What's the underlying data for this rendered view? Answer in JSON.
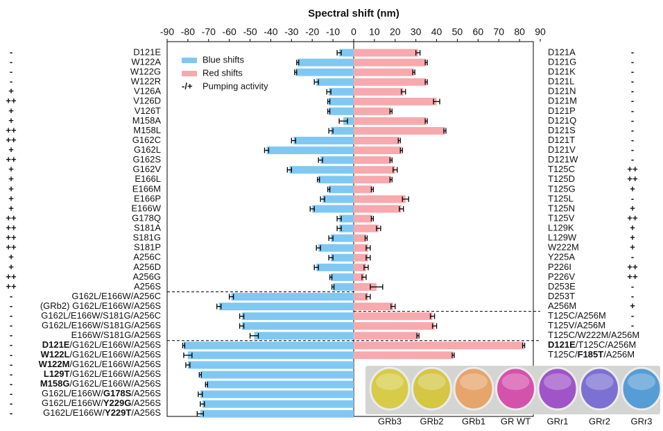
{
  "chart_data": {
    "type": "diverging-bar",
    "title": "Spectral shift (nm)",
    "xlim": [
      -90,
      90
    ],
    "xticks": [
      -90,
      -80,
      -70,
      -60,
      -50,
      -40,
      -30,
      -20,
      -10,
      0,
      10,
      20,
      30,
      40,
      50,
      60,
      70,
      80,
      90
    ],
    "legend_note": {
      "symbol": "-/+",
      "label": "Pumping activity"
    },
    "series": [
      {
        "name": "Blue shifts",
        "color": "#80c8f2",
        "side": "left",
        "categories": [
          "D121E",
          "W122A",
          "W122G",
          "W122R",
          "V126A",
          "V126D",
          "V126T",
          "M158A",
          "M158L",
          "G162C",
          "G162L",
          "G162S",
          "G162V",
          "E166L",
          "E166M",
          "E166P",
          "E166W",
          "G178Q",
          "S181A",
          "S181G",
          "S181P",
          "A256C",
          "A256D",
          "A256G",
          "A256S",
          "G162L/E166W/A256C",
          "(GRb2) G162L/E166W/A256S",
          "G162L/E166W/S181G/A256C",
          "G162L/E166W/S181G/A256S",
          "E166W/S181G/A256S",
          [
            {
              "text": "D121E",
              "bold": true
            },
            {
              "text": "/G162L/E166W/A256S",
              "bold": false
            }
          ],
          [
            {
              "text": "W122L",
              "bold": true
            },
            {
              "text": "/G162L/E166W/A256S",
              "bold": false
            }
          ],
          [
            {
              "text": "W122M",
              "bold": true
            },
            {
              "text": "/G162L/E166W/A256S",
              "bold": false
            }
          ],
          [
            {
              "text": "L129T",
              "bold": true
            },
            {
              "text": "/G162L/E166W/A256S",
              "bold": false
            }
          ],
          [
            {
              "text": "M158G",
              "bold": true
            },
            {
              "text": "/G162L/E166W/A256S",
              "bold": false
            }
          ],
          [
            {
              "text": "G162L/E166W/",
              "bold": false
            },
            {
              "text": "G178S",
              "bold": true
            },
            {
              "text": "/A256S",
              "bold": false
            }
          ],
          [
            {
              "text": "G162L/E166W/",
              "bold": false
            },
            {
              "text": "Y229G",
              "bold": true
            },
            {
              "text": "/A256S",
              "bold": false
            }
          ],
          [
            {
              "text": "G162L/E166W/",
              "bold": false
            },
            {
              "text": "Y229T",
              "bold": true
            },
            {
              "text": "/A256S",
              "bold": false
            }
          ]
        ],
        "values": [
          -7,
          -27,
          -28,
          -18,
          -12,
          -12,
          -12,
          -5,
          -11,
          -29,
          -42,
          -16,
          -31,
          -17,
          -12,
          -15,
          -20,
          -7,
          -7,
          -11,
          -17,
          -11,
          -18,
          -11,
          -10,
          -59,
          -65,
          -54,
          -54,
          -48,
          -82,
          -80,
          -80,
          -74,
          -71,
          -74,
          -73,
          -74
        ],
        "errors": [
          1,
          0.5,
          0.5,
          1,
          1,
          0.5,
          0.5,
          2,
          1,
          1,
          1,
          1,
          1,
          0.5,
          0.5,
          1,
          1,
          1,
          1,
          1,
          1,
          1,
          1,
          0.5,
          0.5,
          1,
          1,
          1,
          1,
          2,
          0.5,
          2,
          1,
          0.5,
          0.5,
          1,
          1,
          1.5
        ],
        "activity": [
          "-",
          "-",
          "-",
          "-",
          "+",
          "++",
          "+",
          "+",
          "++",
          "++",
          "+",
          "++",
          "+",
          "+",
          "+",
          "+",
          "+",
          "++",
          "++",
          "++",
          "++",
          "+",
          "+",
          "++",
          "++",
          "-",
          "-",
          "-",
          "-",
          "-",
          "-",
          "-",
          "-",
          "-",
          "-",
          "-",
          "-",
          "-"
        ]
      },
      {
        "name": "Red shifts",
        "color": "#f7a9ad",
        "side": "right",
        "categories": [
          "D121A",
          "D121G",
          "D121K",
          "D121L",
          "D121N",
          "D121M",
          "D121P",
          "D121Q",
          "D121S",
          "D121T",
          "D121V",
          "D121W",
          "T125C",
          "T125D",
          "T125G",
          "T125L",
          "T125N",
          "T125V",
          "L129K",
          "L129W",
          "W222M",
          "Y225A",
          "P226I",
          "P226V",
          "D253E",
          "D253T",
          "A256M",
          "T125C/A256M",
          "T125V/A256M",
          "T125C/W222M/A256M",
          [
            {
              "text": "D121E",
              "bold": true
            },
            {
              "text": "/T125C/A256M",
              "bold": false
            }
          ],
          [
            {
              "text": "T125C/",
              "bold": false
            },
            {
              "text": "F185T",
              "bold": true
            },
            {
              "text": "/A256M",
              "bold": false
            }
          ]
        ],
        "values": [
          31,
          35,
          29,
          35,
          24,
          40,
          18,
          35,
          44,
          22,
          23,
          18,
          20,
          18,
          9,
          25,
          23,
          9,
          12,
          6,
          7,
          7,
          6,
          5,
          11,
          7,
          19,
          38,
          39,
          31,
          82,
          48
        ],
        "errors": [
          1,
          0.5,
          0.5,
          0.5,
          1,
          1.5,
          0.5,
          0.5,
          0.5,
          0.5,
          0.5,
          0.5,
          1,
          0.5,
          0.5,
          1.5,
          1,
          0.5,
          1,
          0.5,
          1,
          1,
          1,
          1,
          3,
          1,
          1,
          1,
          1,
          0.5,
          0.5,
          0.5
        ],
        "activity": [
          "-",
          "-",
          "-",
          "-",
          "-",
          "-",
          "-",
          "-",
          "-",
          "-",
          "-",
          "-",
          "++",
          "++",
          "+",
          "-",
          "+",
          "++",
          "+",
          "+",
          "+",
          "-",
          "++",
          "++",
          "-",
          "-",
          "+",
          "-",
          "-",
          null,
          null,
          null
        ]
      }
    ],
    "photo": {
      "labels": [
        "GRb3",
        "GRb2",
        "GRb1",
        "GR WT",
        "GRr1",
        "GRr2",
        "GRr3"
      ],
      "colors": [
        "#d8cb3a",
        "#d6c535",
        "#e8a060",
        "#d545a8",
        "#9a48c8",
        "#7466d4",
        "#4a98d6"
      ]
    }
  }
}
